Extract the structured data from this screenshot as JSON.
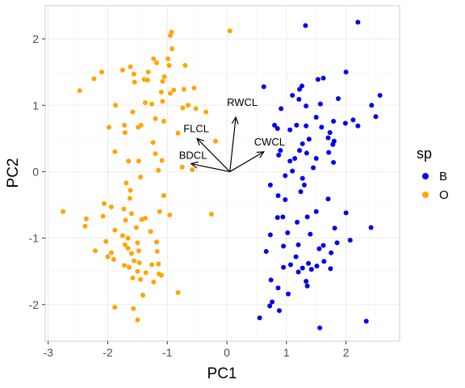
{
  "chart_data": {
    "type": "scatter",
    "title": "",
    "xlabel": "PC1",
    "ylabel": "PC2",
    "xlim": [
      -3.05,
      2.9
    ],
    "ylim": [
      -2.55,
      2.5
    ],
    "x_ticks": [
      -3,
      -2,
      -1,
      0,
      1,
      2
    ],
    "y_ticks": [
      -2,
      -1,
      0,
      1,
      2
    ],
    "grid": true,
    "legend": {
      "title": "sp",
      "position": "right",
      "entries": [
        {
          "label": "B",
          "color": "#0000ee"
        },
        {
          "label": "O",
          "color": "#ffa500"
        }
      ]
    },
    "series": [
      {
        "name": "B",
        "color": "#0000ee",
        "points": [
          [
            2.2,
            2.25
          ],
          [
            1.32,
            2.2
          ],
          [
            1.53,
            1.39
          ],
          [
            1.62,
            1.41
          ],
          [
            2.0,
            1.5
          ],
          [
            0.62,
            1.28
          ],
          [
            1.22,
            1.24
          ],
          [
            1.26,
            1.29
          ],
          [
            1.1,
            1.15
          ],
          [
            1.21,
            1.09
          ],
          [
            1.57,
            1.02
          ],
          [
            2.57,
            1.15
          ],
          [
            2.43,
            1.0
          ],
          [
            0.91,
            0.95
          ],
          [
            1.87,
            1.1
          ],
          [
            1.33,
            0.99
          ],
          [
            0.85,
            0.65
          ],
          [
            1.06,
            0.63
          ],
          [
            0.8,
            0.7
          ],
          [
            1.17,
            0.7
          ],
          [
            1.33,
            0.69
          ],
          [
            1.5,
            0.82
          ],
          [
            1.79,
            0.76
          ],
          [
            1.73,
            0.59
          ],
          [
            1.99,
            0.73
          ],
          [
            2.12,
            0.78
          ],
          [
            2.2,
            0.69
          ],
          [
            2.5,
            0.83
          ],
          [
            1.59,
            0.67
          ],
          [
            1.38,
            0.49
          ],
          [
            1.27,
            0.42
          ],
          [
            1.7,
            0.51
          ],
          [
            1.78,
            0.41
          ],
          [
            1.8,
            0.46
          ],
          [
            1.22,
            0.32
          ],
          [
            1.34,
            0.28
          ],
          [
            0.9,
            0.32
          ],
          [
            0.87,
            0.25
          ],
          [
            1.06,
            0.16
          ],
          [
            1.14,
            0.2
          ],
          [
            1.5,
            0.2
          ],
          [
            1.71,
            0.29
          ],
          [
            1.79,
            0.14
          ],
          [
            1.45,
            0.06
          ],
          [
            1.1,
            0.01
          ],
          [
            0.98,
            -0.06
          ],
          [
            1.27,
            -0.1
          ],
          [
            1.3,
            -0.2
          ],
          [
            1.24,
            -0.3
          ],
          [
            0.73,
            -0.2
          ],
          [
            0.86,
            -0.36
          ],
          [
            0.98,
            -0.42
          ],
          [
            1.7,
            -0.41
          ],
          [
            2.0,
            -0.62
          ],
          [
            1.5,
            -0.6
          ],
          [
            1.35,
            -0.68
          ],
          [
            0.94,
            -0.68
          ],
          [
            0.85,
            -0.69
          ],
          [
            1.18,
            -0.76
          ],
          [
            2.42,
            -0.84
          ],
          [
            0.73,
            -0.95
          ],
          [
            1.02,
            -0.92
          ],
          [
            1.4,
            -0.94
          ],
          [
            1.81,
            -0.85
          ],
          [
            2.07,
            -1.03
          ],
          [
            1.62,
            -1.11
          ],
          [
            0.95,
            -1.12
          ],
          [
            1.2,
            -1.1
          ],
          [
            1.55,
            -1.16
          ],
          [
            1.75,
            -1.22
          ],
          [
            1.85,
            -1.07
          ],
          [
            0.66,
            -1.2
          ],
          [
            1.16,
            -1.28
          ],
          [
            1.37,
            -1.38
          ],
          [
            1.42,
            -1.47
          ],
          [
            1.27,
            -1.45
          ],
          [
            1.51,
            -1.42
          ],
          [
            0.95,
            -1.44
          ],
          [
            1.07,
            -1.4
          ],
          [
            1.74,
            -1.46
          ],
          [
            1.2,
            -1.51
          ],
          [
            0.74,
            -1.63
          ],
          [
            1.63,
            -1.35
          ],
          [
            1.33,
            -1.65
          ],
          [
            1.35,
            -1.72
          ],
          [
            0.86,
            -1.75
          ],
          [
            1.03,
            -1.84
          ],
          [
            0.76,
            -1.96
          ],
          [
            0.72,
            -2.02
          ],
          [
            0.88,
            -2.09
          ],
          [
            0.55,
            -2.2
          ],
          [
            2.34,
            -2.25
          ],
          [
            1.56,
            -2.35
          ]
        ]
      },
      {
        "name": "O",
        "color": "#ffa500",
        "points": [
          [
            -0.93,
            2.1
          ],
          [
            -0.95,
            2.05
          ],
          [
            0.05,
            2.12
          ],
          [
            -0.92,
            1.85
          ],
          [
            -0.7,
            1.6
          ],
          [
            -0.99,
            1.7
          ],
          [
            -1.18,
            1.64
          ],
          [
            -1.23,
            1.7
          ],
          [
            -0.97,
            1.6
          ],
          [
            -1.62,
            1.58
          ],
          [
            -1.75,
            1.53
          ],
          [
            -2.1,
            1.5
          ],
          [
            -1.32,
            1.5
          ],
          [
            -1.39,
            1.39
          ],
          [
            -1.05,
            1.43
          ],
          [
            -1.08,
            1.36
          ],
          [
            -1.56,
            1.47
          ],
          [
            -1.33,
            1.38
          ],
          [
            -1.55,
            1.35
          ],
          [
            -2.23,
            1.4
          ],
          [
            -2.47,
            1.22
          ],
          [
            -0.55,
            1.26
          ],
          [
            -0.89,
            1.23
          ],
          [
            -0.95,
            1.18
          ],
          [
            -1.1,
            1.2
          ],
          [
            -0.72,
            1.24
          ],
          [
            -0.65,
            1.0
          ],
          [
            -1.37,
            1.04
          ],
          [
            -1.08,
            1.06
          ],
          [
            -1.26,
            1.02
          ],
          [
            -1.87,
            1.0
          ],
          [
            -0.52,
            0.95
          ],
          [
            -0.74,
            0.96
          ],
          [
            -1.58,
            0.9
          ],
          [
            -0.35,
            0.9
          ],
          [
            -1.2,
            0.8
          ],
          [
            -1.06,
            0.76
          ],
          [
            -1.72,
            0.7
          ],
          [
            -1.98,
            0.67
          ],
          [
            -1.44,
            0.7
          ],
          [
            -1.49,
            0.67
          ],
          [
            -0.82,
            0.58
          ],
          [
            -1.71,
            0.59
          ],
          [
            -1.24,
            0.44
          ],
          [
            -0.19,
            0.46
          ],
          [
            -1.88,
            0.3
          ],
          [
            -1.2,
            0.27
          ],
          [
            -1.65,
            0.16
          ],
          [
            -1.09,
            0.17
          ],
          [
            -0.75,
            0.07
          ],
          [
            -1.48,
            0.16
          ],
          [
            -1.15,
            0.02
          ],
          [
            -0.58,
            0.03
          ],
          [
            -1.45,
            -0.08
          ],
          [
            -1.69,
            -0.17
          ],
          [
            -1.62,
            -0.28
          ],
          [
            -1.06,
            -0.36
          ],
          [
            -2.06,
            -0.48
          ],
          [
            -1.94,
            -0.53
          ],
          [
            -1.63,
            -0.4
          ],
          [
            -1.73,
            -0.56
          ],
          [
            -1.13,
            -0.6
          ],
          [
            -0.96,
            -0.65
          ],
          [
            -0.26,
            -0.64
          ],
          [
            -2.75,
            -0.6
          ],
          [
            -2.36,
            -0.71
          ],
          [
            -1.6,
            -0.63
          ],
          [
            -2.08,
            -0.67
          ],
          [
            -1.43,
            -0.72
          ],
          [
            -1.37,
            -0.7
          ],
          [
            -1.7,
            -0.73
          ],
          [
            -2.38,
            -0.82
          ],
          [
            -1.88,
            -0.88
          ],
          [
            -1.52,
            -0.84
          ],
          [
            -1.28,
            -0.9
          ],
          [
            -1.75,
            -0.96
          ],
          [
            -1.66,
            -1.0
          ],
          [
            -1.5,
            -1.07
          ],
          [
            -2.03,
            -1.05
          ],
          [
            -2.21,
            -1.19
          ],
          [
            -1.71,
            -1.1
          ],
          [
            -1.66,
            -1.15
          ],
          [
            -1.48,
            -1.19
          ],
          [
            -1.17,
            -1.2
          ],
          [
            -1.94,
            -1.22
          ],
          [
            -2.0,
            -1.28
          ],
          [
            -1.6,
            -1.23
          ],
          [
            -1.18,
            -1.06
          ],
          [
            -1.9,
            -1.32
          ],
          [
            -1.56,
            -1.34
          ],
          [
            -1.47,
            -1.37
          ],
          [
            -1.72,
            -1.41
          ],
          [
            -1.15,
            -1.39
          ],
          [
            -1.26,
            -1.4
          ],
          [
            -1.64,
            -1.44
          ],
          [
            -1.5,
            -1.5
          ],
          [
            -1.36,
            -1.52
          ],
          [
            -1.14,
            -1.54
          ],
          [
            -1.1,
            -1.56
          ],
          [
            -1.58,
            -1.6
          ],
          [
            -1.45,
            -1.62
          ],
          [
            -1.23,
            -1.66
          ],
          [
            -0.82,
            -1.82
          ],
          [
            -1.41,
            -1.86
          ],
          [
            -1.88,
            -2.04
          ],
          [
            -1.57,
            -2.06
          ],
          [
            -1.5,
            -2.23
          ]
        ]
      }
    ],
    "arrows": [
      {
        "label": "FLCL",
        "x": -0.5,
        "y": 0.5
      },
      {
        "label": "RWCL",
        "x": 0.15,
        "y": 0.82
      },
      {
        "label": "CWCL",
        "x": 0.62,
        "y": 0.3
      },
      {
        "label": "BDCL",
        "x": -0.6,
        "y": 0.12
      }
    ],
    "arrow_origin": [
      0.05,
      0.0
    ]
  }
}
